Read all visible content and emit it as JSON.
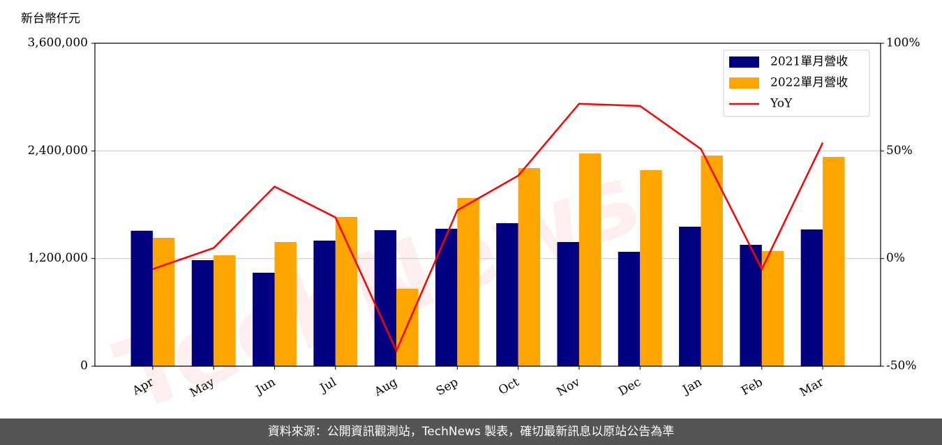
{
  "chart_data": {
    "type": "bar_line",
    "y_label": "新台幣仟元",
    "watermark": "TechNews",
    "footer": "資料來源：公開資訊觀測站，TechNews 製表，確切最新訊息以原站公告為準",
    "categories": [
      "Apr",
      "May",
      "Jun",
      "Jul",
      "Aug",
      "Sep",
      "Oct",
      "Nov",
      "Dec",
      "Jan",
      "Feb",
      "Mar"
    ],
    "series": [
      {
        "name": "2021單月營收",
        "color": "#000080",
        "values": [
          1510000,
          1182000,
          1042000,
          1400000,
          1516000,
          1532000,
          1594000,
          1384000,
          1275000,
          1555000,
          1353000,
          1524000
        ]
      },
      {
        "name": "2022單月營收",
        "color": "#ffa500",
        "values": [
          1431000,
          1236000,
          1384000,
          1664000,
          863000,
          1874000,
          2208000,
          2371000,
          2185000,
          2348000,
          1283000,
          2333000
        ]
      },
      {
        "name": "YoY",
        "color": "#ff0000",
        "axis": "y2",
        "values": [
          -4.9,
          4.9,
          33.4,
          19.1,
          -42.8,
          22.4,
          38.5,
          71.9,
          70.9,
          50.9,
          -4.9,
          53.8
        ]
      }
    ],
    "ylim": [
      0,
      3600000
    ],
    "yticks": [
      0,
      {
        "value": 1200000,
        "label": "1,200,000"
      },
      {
        "value": 2400000,
        "label": "2,400,000"
      },
      {
        "value": 3600000,
        "label": "3,600,000"
      }
    ],
    "y2lim": [
      -50,
      100
    ],
    "y2ticks": [
      {
        "value": -50,
        "label": "-50%"
      },
      {
        "value": 0,
        "label": "0%"
      },
      {
        "value": 50,
        "label": "50%"
      },
      {
        "value": 100,
        "label": "100%"
      }
    ],
    "grid": true,
    "legend": "upper right"
  }
}
